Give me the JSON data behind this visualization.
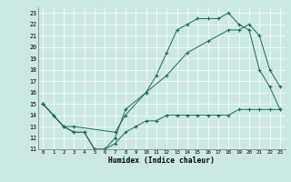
{
  "xlabel": "Humidex (Indice chaleur)",
  "bg_color": "#cce8e4",
  "line_color": "#1a6b5a",
  "xlim": [
    -0.5,
    23.5
  ],
  "ylim": [
    11,
    23.5
  ],
  "yticks": [
    11,
    12,
    13,
    14,
    15,
    16,
    17,
    18,
    19,
    20,
    21,
    22,
    23
  ],
  "xticks": [
    0,
    1,
    2,
    3,
    4,
    5,
    6,
    7,
    8,
    9,
    10,
    11,
    12,
    13,
    14,
    15,
    16,
    17,
    18,
    19,
    20,
    21,
    22,
    23
  ],
  "line1_x": [
    0,
    1,
    2,
    3,
    4,
    5,
    6,
    7,
    8,
    10,
    11,
    12,
    13,
    14,
    15,
    16,
    17,
    18,
    19,
    20,
    21,
    22,
    23
  ],
  "line1_y": [
    15,
    14,
    13,
    12.5,
    12.5,
    11,
    11,
    12,
    14.5,
    16,
    17.5,
    19.5,
    21.5,
    22,
    22.5,
    22.5,
    22.5,
    23,
    22,
    21.5,
    18,
    16.5,
    14.5
  ],
  "line2_x": [
    0,
    2,
    3,
    7,
    8,
    10,
    12,
    14,
    16,
    18,
    19,
    20,
    21,
    22,
    23
  ],
  "line2_y": [
    15,
    13,
    13,
    12.5,
    14.0,
    16,
    17.5,
    19.5,
    20.5,
    21.5,
    21.5,
    22,
    21,
    18,
    16.5
  ],
  "line3_x": [
    0,
    1,
    2,
    3,
    4,
    5,
    6,
    7,
    8,
    9,
    10,
    11,
    12,
    13,
    14,
    15,
    16,
    17,
    18,
    19,
    20,
    21,
    22,
    23
  ],
  "line3_y": [
    15,
    14,
    13,
    12.5,
    12.5,
    11,
    11,
    11.5,
    12.5,
    13,
    13.5,
    13.5,
    14,
    14,
    14,
    14,
    14,
    14,
    14,
    14.5,
    14.5,
    14.5,
    14.5,
    14.5
  ]
}
